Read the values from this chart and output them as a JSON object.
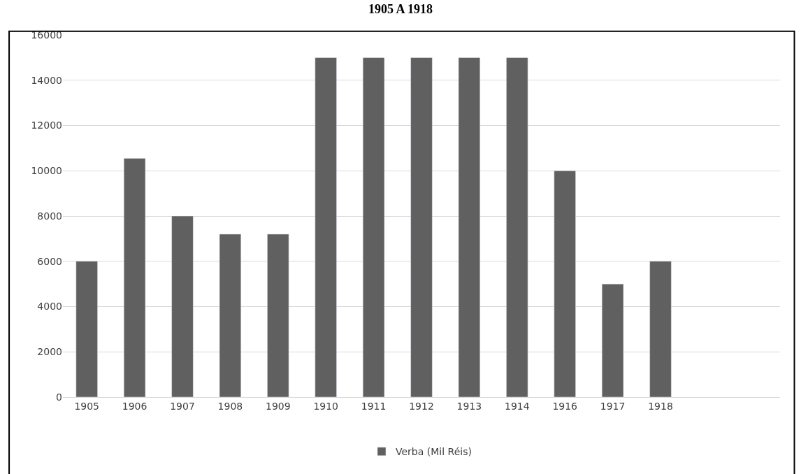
{
  "chart_data": {
    "type": "bar",
    "title": "1905 A 1918",
    "categories": [
      "1905",
      "1906",
      "1907",
      "1908",
      "1909",
      "1910",
      "1911",
      "1912",
      "1913",
      "1914",
      "1916",
      "1917",
      "1918",
      null,
      null
    ],
    "series": [
      {
        "name": "Verba (Mil Réis)",
        "color": "#606060",
        "values": [
          6000,
          10550,
          8000,
          7200,
          7200,
          15000,
          15000,
          15000,
          15000,
          15000,
          10000,
          5000,
          6000,
          null,
          null
        ]
      }
    ],
    "ylim": [
      0,
      16000
    ],
    "yticks": [
      0,
      2000,
      4000,
      6000,
      8000,
      10000,
      12000,
      14000,
      16000
    ],
    "grid": "y",
    "legend": "bottom"
  }
}
